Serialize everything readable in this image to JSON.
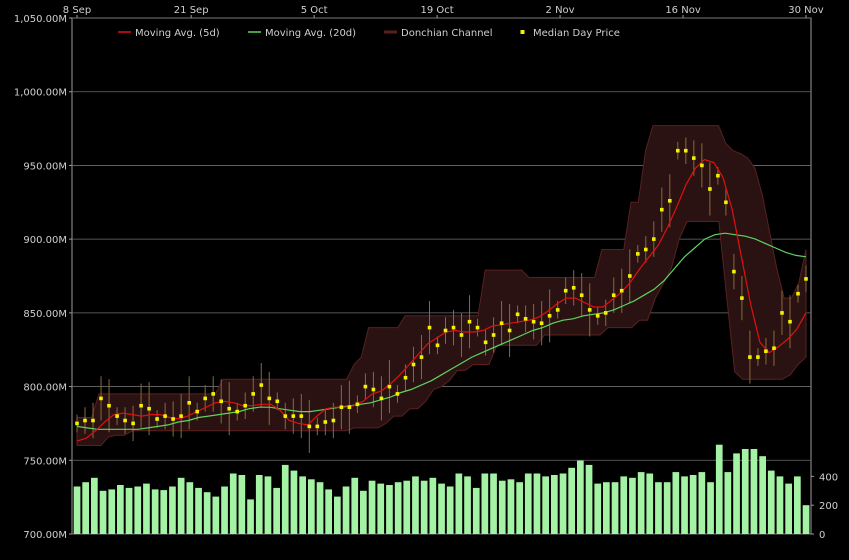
{
  "chart_data": {
    "type": "line",
    "title": "",
    "xlabel": "",
    "ylabel": "",
    "ylim": [
      700,
      1050
    ],
    "volume_lim": [
      0,
      500
    ],
    "grid": true,
    "legend_position": "top-left",
    "x_tick_labels": [
      "8 Sep",
      "21 Sep",
      "5 Oct",
      "19 Oct",
      "2 Nov",
      "16 Nov",
      "30 Nov"
    ],
    "y_tick_labels": [
      "700.00M",
      "750.00M",
      "800.00M",
      "850.00M",
      "900.00M",
      "950.00M",
      "1,000.00M",
      "1,050.00M"
    ],
    "y_tick_values": [
      700,
      750,
      800,
      850,
      900,
      950,
      1000,
      1050
    ],
    "volume_tick_labels": [
      "0",
      "200",
      "400"
    ],
    "volume_tick_values": [
      0,
      200,
      400
    ],
    "legend": [
      {
        "label": "Moving Avg. (5d)",
        "color": "#e01010",
        "kind": "line"
      },
      {
        "label": "Moving Avg. (20d)",
        "color": "#5fd35f",
        "kind": "line"
      },
      {
        "label": "Donchian Channel",
        "color": "#5a2020",
        "kind": "band"
      },
      {
        "label": "Median Day Price",
        "color": "#f2f200",
        "kind": "point"
      }
    ],
    "colors": {
      "background": "#000000",
      "grid": "#6e6e6e",
      "ma5": "#e01010",
      "ma20": "#5fd35f",
      "channel_fill": "#2a1212",
      "channel_edge": "#5a2020",
      "median_point": "#f2f200",
      "volume_bar": "#a4f2a4",
      "high_low": "#8a6a3a"
    },
    "days": 84,
    "series": [
      {
        "name": "Median Day Price",
        "values": [
          775,
          777,
          777,
          792,
          787,
          780,
          777,
          775,
          787,
          785,
          778,
          780,
          778,
          780,
          789,
          783,
          792,
          795,
          790,
          785,
          783,
          787,
          795,
          801,
          792,
          790,
          780,
          780,
          780,
          773,
          773,
          776,
          777,
          786,
          786,
          788,
          800,
          798,
          792,
          800,
          795,
          806,
          815,
          820,
          840,
          828,
          838,
          840,
          835,
          844,
          840,
          830,
          835,
          843,
          838,
          849,
          846,
          844,
          843,
          848,
          852,
          865,
          867,
          862,
          852,
          848,
          850,
          862,
          865,
          875,
          890,
          893,
          900,
          920,
          926,
          960,
          960,
          955,
          950,
          934,
          943,
          925,
          878,
          860,
          820,
          820,
          824,
          826,
          850,
          844,
          863,
          873
        ]
      },
      {
        "name": "Moving Avg. (5d)",
        "values": [
          763,
          765,
          770,
          776,
          781,
          782,
          781,
          780,
          781,
          781,
          779,
          778,
          780,
          783,
          786,
          789,
          790,
          789,
          787,
          787,
          788,
          788,
          784,
          777,
          775,
          774,
          780,
          785,
          786,
          786,
          787,
          790,
          795,
          797,
          802,
          808,
          815,
          822,
          829,
          833,
          837,
          838,
          837,
          837,
          838,
          841,
          842,
          843,
          844,
          845,
          847,
          851,
          856,
          860,
          860,
          857,
          854,
          854,
          859,
          864,
          871,
          880,
          888,
          896,
          908,
          922,
          937,
          948,
          954,
          952,
          942,
          920,
          888,
          856,
          830,
          823,
          827,
          832,
          839,
          850
        ]
      },
      {
        "name": "Moving Avg. (20d)",
        "values": [
          773,
          772,
          771,
          771,
          771,
          771,
          771,
          772,
          773,
          774,
          776,
          777,
          779,
          780,
          781,
          782,
          783,
          785,
          786,
          786,
          785,
          784,
          783,
          783,
          784,
          785,
          786,
          787,
          788,
          789,
          791,
          793,
          796,
          798,
          801,
          804,
          808,
          812,
          816,
          820,
          823,
          826,
          829,
          832,
          835,
          838,
          840,
          843,
          845,
          846,
          848,
          849,
          850,
          852,
          855,
          858,
          862,
          866,
          872,
          880,
          888,
          894,
          900,
          903,
          904,
          903,
          902,
          900,
          897,
          894,
          891,
          889,
          888
        ]
      },
      {
        "name": "Donchian Channel Upper",
        "values": [
          779,
          779,
          779,
          795,
          795,
          795,
          795,
          795,
          795,
          795,
          795,
          795,
          795,
          795,
          795,
          795,
          795,
          795,
          795,
          795,
          805,
          805,
          805,
          805,
          805,
          805,
          805,
          805,
          805,
          805,
          805,
          805,
          805,
          805,
          805,
          805,
          805,
          805,
          815,
          820,
          840,
          840,
          840,
          840,
          840,
          848,
          848,
          848,
          848,
          848,
          848,
          848,
          848,
          848,
          848,
          848,
          879,
          879,
          879,
          879,
          879,
          879,
          874,
          874,
          874,
          874,
          874,
          874,
          874,
          874,
          874,
          874,
          893,
          893,
          893,
          893,
          925,
          925,
          960,
          977,
          977,
          977,
          977,
          977,
          977,
          977,
          977,
          977,
          977,
          965,
          960,
          958,
          955,
          948,
          930,
          905,
          880,
          860,
          860,
          870,
          893
        ]
      },
      {
        "name": "Donchian Channel Lower",
        "values": [
          760,
          760,
          760,
          760,
          766,
          767,
          767,
          770,
          770,
          770,
          770,
          770,
          770,
          770,
          770,
          770,
          770,
          770,
          770,
          770,
          770,
          770,
          770,
          770,
          770,
          770,
          770,
          770,
          770,
          770,
          770,
          770,
          770,
          770,
          770,
          772,
          772,
          772,
          772,
          775,
          780,
          780,
          785,
          785,
          790,
          798,
          800,
          804,
          811,
          811,
          815,
          815,
          815,
          828,
          828,
          828,
          828,
          828,
          828,
          835,
          835,
          835,
          835,
          835,
          835,
          835,
          835,
          840,
          840,
          840,
          840,
          845,
          845,
          860,
          870,
          880,
          900,
          912,
          912,
          912,
          912,
          912,
          860,
          810,
          805,
          805,
          805,
          805,
          805,
          805,
          808,
          815,
          820
        ]
      }
    ],
    "volume": [
      330,
      360,
      390,
      300,
      310,
      340,
      320,
      330,
      350,
      310,
      305,
      330,
      390,
      360,
      320,
      290,
      260,
      330,
      420,
      410,
      240,
      410,
      400,
      320,
      480,
      440,
      400,
      380,
      360,
      310,
      260,
      330,
      390,
      300,
      370,
      350,
      340,
      360,
      370,
      400,
      370,
      390,
      350,
      330,
      420,
      400,
      320,
      420,
      420,
      370,
      380,
      360,
      420,
      420,
      400,
      410,
      420,
      460,
      510,
      480,
      350,
      360,
      360,
      400,
      390,
      430,
      420,
      360,
      360,
      430,
      400,
      410,
      430,
      360,
      620,
      430,
      560,
      590,
      590,
      540,
      440,
      400,
      350,
      400,
      200
    ]
  }
}
